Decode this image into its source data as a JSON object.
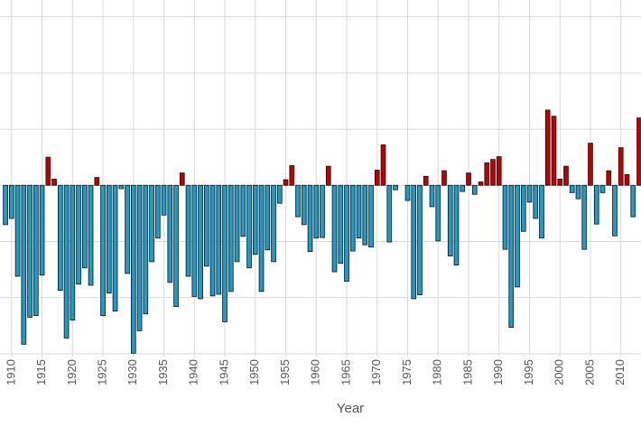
{
  "chart_data": {
    "type": "bar",
    "x_label": "Year",
    "x": [
      1909,
      1910,
      1911,
      1912,
      1913,
      1914,
      1915,
      1916,
      1917,
      1918,
      1919,
      1920,
      1921,
      1922,
      1923,
      1924,
      1925,
      1926,
      1927,
      1928,
      1929,
      1930,
      1931,
      1932,
      1933,
      1934,
      1935,
      1936,
      1937,
      1938,
      1939,
      1940,
      1941,
      1942,
      1943,
      1944,
      1945,
      1946,
      1947,
      1948,
      1949,
      1950,
      1951,
      1952,
      1953,
      1954,
      1955,
      1956,
      1957,
      1958,
      1959,
      1960,
      1961,
      1962,
      1963,
      1964,
      1965,
      1966,
      1967,
      1968,
      1969,
      1970,
      1971,
      1972,
      1973,
      1974,
      1975,
      1976,
      1977,
      1978,
      1979,
      1980,
      1981,
      1982,
      1983,
      1984,
      1985,
      1986,
      1987,
      1988,
      1989,
      1990,
      1991,
      1992,
      1993,
      1994,
      1995,
      1996,
      1997,
      1998,
      1999,
      2000,
      2001,
      2002,
      2003,
      2004,
      2005,
      2006,
      2007,
      2008,
      2009,
      2010,
      2011,
      2012,
      2013
    ],
    "values": [
      -0.7,
      -0.59,
      -1.62,
      -2.83,
      -2.35,
      -2.32,
      -1.6,
      0.5,
      0.11,
      -1.87,
      -2.72,
      -2.4,
      -1.76,
      -1.47,
      -1.78,
      0.14,
      -2.32,
      -1.92,
      -2.24,
      -0.06,
      -1.57,
      -2.99,
      -2.59,
      -2.29,
      -1.36,
      -0.94,
      -0.53,
      -1.73,
      -2.16,
      0.22,
      -1.62,
      -1.98,
      -2.02,
      -1.44,
      -1.97,
      -1.94,
      -2.43,
      -1.89,
      -1.36,
      -0.91,
      -1.47,
      -1.23,
      -1.89,
      -1.15,
      -1.36,
      -0.32,
      0.1,
      0.35,
      -0.56,
      -0.7,
      -1.18,
      -0.94,
      -0.93,
      0.34,
      -1.54,
      -1.39,
      -1.71,
      -1.17,
      -0.94,
      -1.06,
      -1.1,
      0.27,
      0.72,
      -1.01,
      -0.08,
      0,
      -0.27,
      -2.02,
      -1.95,
      0.16,
      -0.38,
      -0.99,
      0.26,
      -1.26,
      -1.42,
      -0.11,
      0.22,
      -0.16,
      0.06,
      0.4,
      0.46,
      0.51,
      -1.14,
      -2.53,
      -1.81,
      -0.82,
      -0.3,
      -0.59,
      -0.94,
      1.34,
      1.23,
      0.11,
      0.34,
      -0.13,
      -0.24,
      -1.14,
      0.75,
      -0.69,
      -0.13,
      0.26,
      -0.9,
      0.67,
      0.19,
      -0.56,
      1.2
    ],
    "positive_color": "#c00000",
    "negative_color": "#1f9bc9",
    "xlim": [
      1908.1,
      2013.3
    ],
    "xticks": [
      1910,
      1915,
      1920,
      1925,
      1930,
      1935,
      1940,
      1945,
      1950,
      1955,
      1960,
      1965,
      1970,
      1975,
      1980,
      1985,
      1990,
      1995,
      2000,
      2005,
      2010
    ],
    "ylim": [
      -3.05,
      3.3
    ],
    "yticks": [
      -3,
      -2,
      -1,
      0,
      1,
      2,
      3
    ],
    "grid": true
  }
}
